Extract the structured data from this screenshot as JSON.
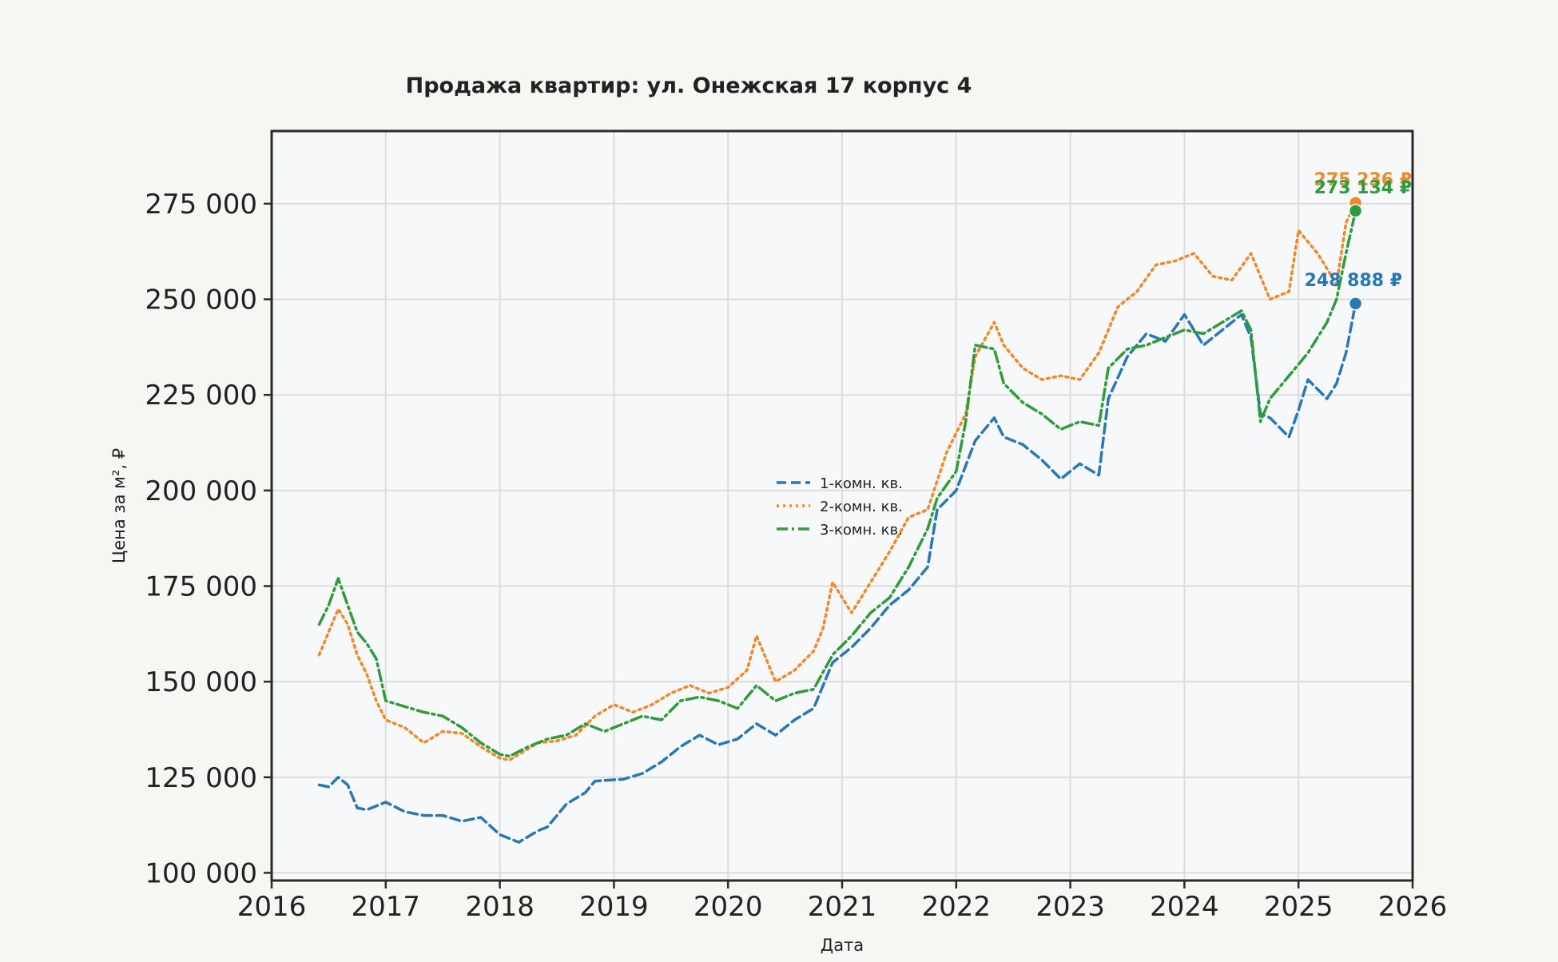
{
  "chart_data": {
    "type": "line",
    "title": "Продажа квартир: ул. Онежская 17 корпус 4",
    "xlabel": "Дата",
    "ylabel": "Цена за м², ₽",
    "xlim": [
      "2016-01-01",
      "2026-01-01"
    ],
    "ylim": [
      98000,
      294000
    ],
    "x_ticks": [
      "2016",
      "2017",
      "2018",
      "2019",
      "2020",
      "2021",
      "2022",
      "2023",
      "2024",
      "2025",
      "2026"
    ],
    "y_ticks": [
      100000,
      125000,
      150000,
      175000,
      200000,
      225000,
      250000,
      275000
    ],
    "y_tick_labels": [
      "100 000",
      "125 000",
      "150 000",
      "175 000",
      "200 000",
      "225 000",
      "250 000",
      "275 000"
    ],
    "grid": true,
    "legend_position": "center",
    "series": [
      {
        "name": "1-комн. кв.",
        "color": "#2878b5",
        "dash": "dashed",
        "points": [
          [
            "2016-06",
            123000
          ],
          [
            "2016-07",
            122500
          ],
          [
            "2016-08",
            125000
          ],
          [
            "2016-09",
            123000
          ],
          [
            "2016-10",
            117000
          ],
          [
            "2016-11",
            116500
          ],
          [
            "2016-12",
            117500
          ],
          [
            "2017-01",
            118500
          ],
          [
            "2017-03",
            116000
          ],
          [
            "2017-05",
            115000
          ],
          [
            "2017-07",
            115000
          ],
          [
            "2017-09",
            113500
          ],
          [
            "2017-11",
            114500
          ],
          [
            "2018-01",
            110000
          ],
          [
            "2018-02",
            109000
          ],
          [
            "2018-03",
            108000
          ],
          [
            "2018-05",
            111000
          ],
          [
            "2018-06",
            112000
          ],
          [
            "2018-08",
            118000
          ],
          [
            "2018-10",
            121000
          ],
          [
            "2018-11",
            124000
          ],
          [
            "2019-02",
            124500
          ],
          [
            "2019-04",
            126000
          ],
          [
            "2019-06",
            129000
          ],
          [
            "2019-08",
            133000
          ],
          [
            "2019-10",
            136000
          ],
          [
            "2019-12",
            133500
          ],
          [
            "2020-02",
            135000
          ],
          [
            "2020-04",
            139000
          ],
          [
            "2020-06",
            136000
          ],
          [
            "2020-08",
            140000
          ],
          [
            "2020-10",
            143000
          ],
          [
            "2020-12",
            155000
          ],
          [
            "2021-02",
            159000
          ],
          [
            "2021-04",
            164000
          ],
          [
            "2021-06",
            170000
          ],
          [
            "2021-08",
            174000
          ],
          [
            "2021-10",
            180000
          ],
          [
            "2021-11",
            195000
          ],
          [
            "2022-01",
            200000
          ],
          [
            "2022-03",
            213000
          ],
          [
            "2022-05",
            219000
          ],
          [
            "2022-06",
            214000
          ],
          [
            "2022-08",
            212000
          ],
          [
            "2022-10",
            208000
          ],
          [
            "2022-12",
            203000
          ],
          [
            "2023-02",
            207000
          ],
          [
            "2023-04",
            204000
          ],
          [
            "2023-05",
            224000
          ],
          [
            "2023-07",
            235000
          ],
          [
            "2023-09",
            241000
          ],
          [
            "2023-11",
            239000
          ],
          [
            "2024-01",
            246000
          ],
          [
            "2024-03",
            238000
          ],
          [
            "2024-05",
            242000
          ],
          [
            "2024-07",
            246000
          ],
          [
            "2024-08",
            240000
          ],
          [
            "2024-09",
            220000
          ],
          [
            "2024-10",
            219000
          ],
          [
            "2024-12",
            214000
          ],
          [
            "2025-01",
            221000
          ],
          [
            "2025-02",
            229000
          ],
          [
            "2025-04",
            224000
          ],
          [
            "2025-05",
            228000
          ],
          [
            "2025-06",
            236000
          ],
          [
            "2025-07",
            248888
          ]
        ],
        "last_value_label": "248 888 ₽"
      },
      {
        "name": "2-комн. кв.",
        "color": "#f0892a",
        "dash": "dotted",
        "points": [
          [
            "2016-06",
            157000
          ],
          [
            "2016-07",
            163000
          ],
          [
            "2016-08",
            169000
          ],
          [
            "2016-09",
            165000
          ],
          [
            "2016-10",
            157000
          ],
          [
            "2016-11",
            152000
          ],
          [
            "2016-12",
            145000
          ],
          [
            "2017-01",
            140000
          ],
          [
            "2017-03",
            138000
          ],
          [
            "2017-05",
            134000
          ],
          [
            "2017-07",
            137000
          ],
          [
            "2017-09",
            136500
          ],
          [
            "2017-11",
            133000
          ],
          [
            "2018-01",
            130000
          ],
          [
            "2018-02",
            129500
          ],
          [
            "2018-03",
            131000
          ],
          [
            "2018-05",
            134000
          ],
          [
            "2018-07",
            134500
          ],
          [
            "2018-09",
            136000
          ],
          [
            "2018-11",
            141000
          ],
          [
            "2019-01",
            144000
          ],
          [
            "2019-03",
            142000
          ],
          [
            "2019-05",
            144000
          ],
          [
            "2019-07",
            147000
          ],
          [
            "2019-09",
            149000
          ],
          [
            "2019-11",
            147000
          ],
          [
            "2020-01",
            148500
          ],
          [
            "2020-03",
            153000
          ],
          [
            "2020-04",
            162000
          ],
          [
            "2020-06",
            150000
          ],
          [
            "2020-08",
            153000
          ],
          [
            "2020-10",
            158000
          ],
          [
            "2020-11",
            164000
          ],
          [
            "2020-12",
            176000
          ],
          [
            "2021-02",
            168000
          ],
          [
            "2021-04",
            176000
          ],
          [
            "2021-06",
            184000
          ],
          [
            "2021-08",
            193000
          ],
          [
            "2021-10",
            195000
          ],
          [
            "2021-12",
            210000
          ],
          [
            "2022-02",
            220000
          ],
          [
            "2022-03",
            235000
          ],
          [
            "2022-05",
            244000
          ],
          [
            "2022-06",
            238000
          ],
          [
            "2022-08",
            232000
          ],
          [
            "2022-10",
            229000
          ],
          [
            "2022-12",
            230000
          ],
          [
            "2023-02",
            229000
          ],
          [
            "2023-04",
            236000
          ],
          [
            "2023-06",
            248000
          ],
          [
            "2023-08",
            252000
          ],
          [
            "2023-10",
            259000
          ],
          [
            "2023-12",
            260000
          ],
          [
            "2024-02",
            262000
          ],
          [
            "2024-04",
            256000
          ],
          [
            "2024-06",
            255000
          ],
          [
            "2024-08",
            262000
          ],
          [
            "2024-10",
            250000
          ],
          [
            "2024-12",
            252000
          ],
          [
            "2025-01",
            268000
          ],
          [
            "2025-03",
            262000
          ],
          [
            "2025-05",
            254000
          ],
          [
            "2025-06",
            270000
          ],
          [
            "2025-07",
            275236
          ]
        ],
        "last_value_label": "275 236 ₽"
      },
      {
        "name": "3-комн. кв.",
        "color": "#2e9c3a",
        "dash": "dashdot",
        "points": [
          [
            "2016-06",
            165000
          ],
          [
            "2016-07",
            170000
          ],
          [
            "2016-08",
            177000
          ],
          [
            "2016-09",
            170000
          ],
          [
            "2016-10",
            163000
          ],
          [
            "2016-11",
            160000
          ],
          [
            "2016-12",
            156000
          ],
          [
            "2017-01",
            145000
          ],
          [
            "2017-03",
            143500
          ],
          [
            "2017-05",
            142000
          ],
          [
            "2017-07",
            141000
          ],
          [
            "2017-09",
            138000
          ],
          [
            "2017-11",
            134000
          ],
          [
            "2018-01",
            131000
          ],
          [
            "2018-02",
            130500
          ],
          [
            "2018-04",
            133000
          ],
          [
            "2018-06",
            135000
          ],
          [
            "2018-08",
            136000
          ],
          [
            "2018-10",
            139000
          ],
          [
            "2018-12",
            137000
          ],
          [
            "2019-02",
            139000
          ],
          [
            "2019-04",
            141000
          ],
          [
            "2019-06",
            140000
          ],
          [
            "2019-08",
            145000
          ],
          [
            "2019-10",
            146000
          ],
          [
            "2019-12",
            145000
          ],
          [
            "2020-02",
            143000
          ],
          [
            "2020-04",
            149000
          ],
          [
            "2020-06",
            145000
          ],
          [
            "2020-08",
            147000
          ],
          [
            "2020-10",
            148000
          ],
          [
            "2020-12",
            157000
          ],
          [
            "2021-02",
            162000
          ],
          [
            "2021-04",
            168000
          ],
          [
            "2021-06",
            172000
          ],
          [
            "2021-08",
            180000
          ],
          [
            "2021-10",
            190000
          ],
          [
            "2021-11",
            198000
          ],
          [
            "2022-01",
            205000
          ],
          [
            "2022-02",
            218000
          ],
          [
            "2022-03",
            238000
          ],
          [
            "2022-05",
            237000
          ],
          [
            "2022-06",
            228000
          ],
          [
            "2022-08",
            223000
          ],
          [
            "2022-10",
            220000
          ],
          [
            "2022-12",
            216000
          ],
          [
            "2023-02",
            218000
          ],
          [
            "2023-04",
            217000
          ],
          [
            "2023-05",
            232000
          ],
          [
            "2023-07",
            237000
          ],
          [
            "2023-09",
            238000
          ],
          [
            "2023-11",
            240000
          ],
          [
            "2024-01",
            242000
          ],
          [
            "2024-03",
            241000
          ],
          [
            "2024-05",
            244000
          ],
          [
            "2024-07",
            247000
          ],
          [
            "2024-08",
            242000
          ],
          [
            "2024-09",
            218000
          ],
          [
            "2024-10",
            224000
          ],
          [
            "2024-12",
            230000
          ],
          [
            "2025-02",
            236000
          ],
          [
            "2025-04",
            244000
          ],
          [
            "2025-05",
            250000
          ],
          [
            "2025-06",
            262000
          ],
          [
            "2025-07",
            273134
          ]
        ],
        "last_value_label": "273 134 ₽"
      }
    ]
  }
}
